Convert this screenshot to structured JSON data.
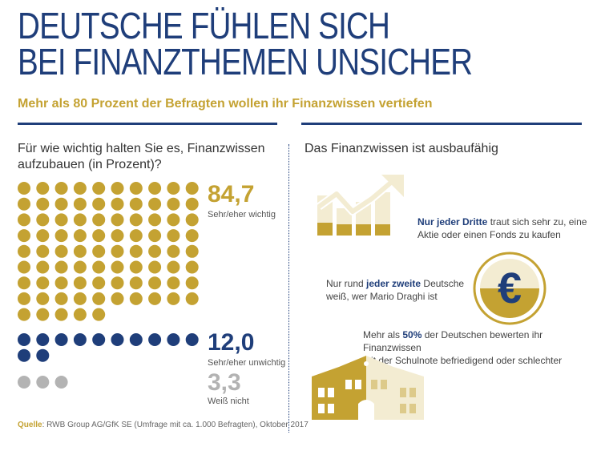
{
  "header": {
    "title_line1": "DEUTSCHE FÜHLEN SICH",
    "title_line2": "BEI FINANZTHEMEN UNSICHER",
    "subtitle": "Mehr als 80 Prozent der Befragten wollen ihr Finanzwissen vertiefen"
  },
  "left": {
    "question_line1": "Für wie wichtig halten Sie es, Finanzwissen",
    "question_line2": "aufzubauen (in Prozent)?"
  },
  "right": {
    "title": "Das Finanzwissen ist ausbaufähig",
    "fact1": {
      "bold": "Nur jeder Dritte",
      "rest1": " traut sich sehr zu, eine",
      "line2": "Aktie oder einen Fonds zu kaufen"
    },
    "fact2": {
      "pre": "Nur rund ",
      "bold": "jeder zweite",
      "rest1": " Deutsche",
      "line2": "weiß, wer Mario Draghi ist"
    },
    "fact3": {
      "pre": "Mehr als ",
      "bold": "50%",
      "rest1": " der Deutschen bewerten ihr Finanzwissen",
      "line2": "mit der Schulnote befriedigend oder schlechter"
    },
    "euro_symbol": "€"
  },
  "source": {
    "label": "Quelle",
    "text": ": RWB Group AG/GfK SE (Umfrage mit ca. 1.000 Befragten), Oktober 2017"
  },
  "colors": {
    "gold": "#c4a232",
    "navy": "#1f3e7a",
    "grey": "#b3b3b3",
    "cream": "#f3ecd2"
  },
  "chart_data": {
    "type": "dot-matrix",
    "unit": "Prozent",
    "dots_per_row": 10,
    "series": [
      {
        "label_value": "84,7",
        "label": "Sehr/eher wichtig",
        "value": 84.7,
        "dots": 85,
        "color": "#c4a232"
      },
      {
        "label_value": "12,0",
        "label": "Sehr/eher unwichtig",
        "value": 12.0,
        "dots": 12,
        "color": "#1f3e7a"
      },
      {
        "label_value": "3,3",
        "label": "Weiß nicht",
        "value": 3.3,
        "dots": 3,
        "color": "#b3b3b3"
      }
    ]
  }
}
